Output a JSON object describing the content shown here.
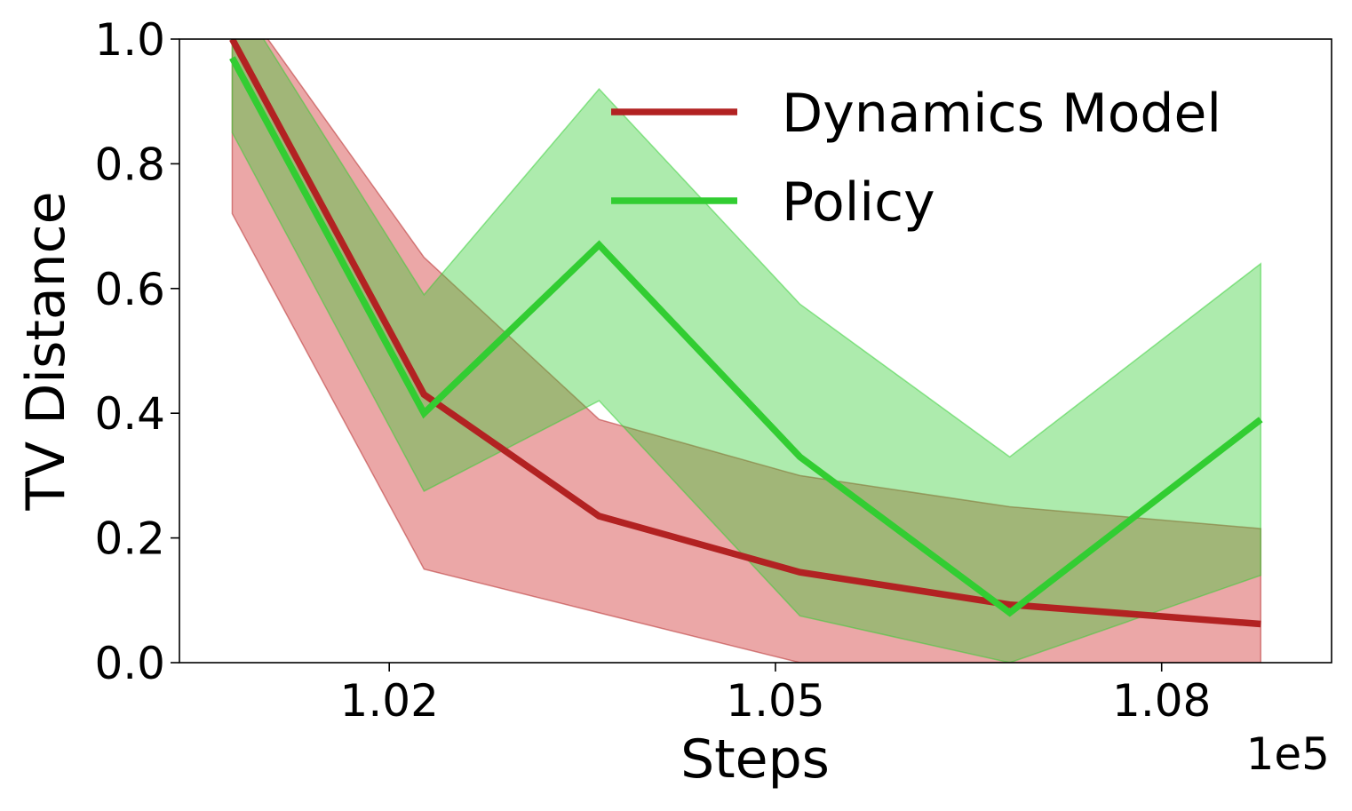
{
  "chart_data": {
    "type": "line",
    "xlabel": "Steps",
    "ylabel": "TV Distance",
    "x_offset_text": "1e5",
    "xlim": [
      1.0037,
      1.0932
    ],
    "ylim": [
      0.0,
      1.0
    ],
    "x_ticks": [
      {
        "value": 1.02,
        "label": "1.02"
      },
      {
        "value": 1.05,
        "label": "1.05"
      },
      {
        "value": 1.08,
        "label": "1.08"
      }
    ],
    "y_ticks": [
      {
        "value": 0.0,
        "label": "0.0"
      },
      {
        "value": 0.2,
        "label": "0.2"
      },
      {
        "value": 0.4,
        "label": "0.4"
      },
      {
        "value": 0.6,
        "label": "0.6"
      },
      {
        "value": 0.8,
        "label": "0.8"
      },
      {
        "value": 1.0,
        "label": "1.0"
      }
    ],
    "x": [
      1.0078,
      1.0227,
      1.0363,
      1.0519,
      1.0682,
      1.0877
    ],
    "series": [
      {
        "name": "Dynamics Model",
        "color": "#b22222",
        "values": [
          1.0,
          0.43,
          0.235,
          0.145,
          0.093,
          0.062
        ],
        "lower": [
          0.72,
          0.15,
          0.08,
          0.0,
          0.0,
          0.0
        ],
        "upper": [
          1.08,
          0.65,
          0.39,
          0.3,
          0.25,
          0.215
        ]
      },
      {
        "name": "Policy",
        "color": "#32cd32",
        "values": [
          0.97,
          0.4,
          0.67,
          0.33,
          0.08,
          0.39
        ],
        "lower": [
          0.85,
          0.275,
          0.42,
          0.075,
          0.0,
          0.14
        ],
        "upper": [
          1.08,
          0.59,
          0.92,
          0.575,
          0.33,
          0.64
        ]
      }
    ],
    "legend": {
      "position": "upper-right"
    },
    "grid": false
  }
}
